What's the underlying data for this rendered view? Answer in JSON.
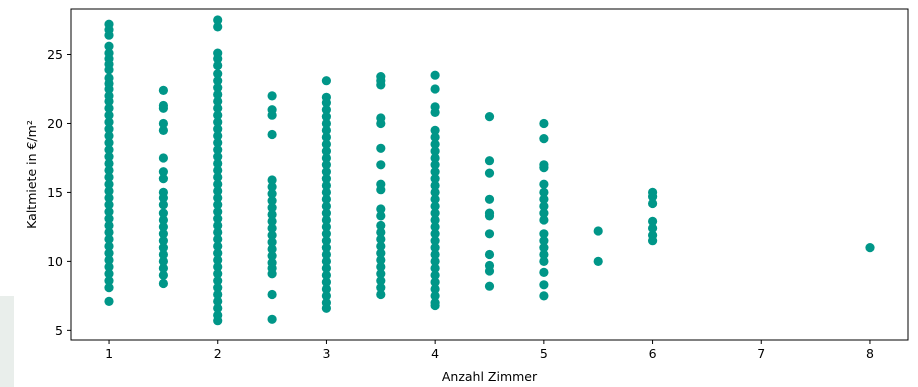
{
  "chart_data": {
    "type": "scatter",
    "title": "",
    "xlabel": "Anzahl Zimmer",
    "ylabel": "Kaltmiete in €/m²",
    "xlim": [
      0.65,
      8.35
    ],
    "ylim": [
      4.3,
      28.3
    ],
    "xticks": [
      1,
      2,
      3,
      4,
      5,
      6,
      7,
      8
    ],
    "yticks": [
      5,
      10,
      15,
      20,
      25
    ],
    "grid": false,
    "marker_color": "#009688",
    "series": [
      {
        "points": [
          {
            "x": 1,
            "y": 27.2
          },
          {
            "x": 1,
            "y": 26.8
          },
          {
            "x": 1,
            "y": 26.4
          },
          {
            "x": 1,
            "y": 25.6
          },
          {
            "x": 1,
            "y": 25.1
          },
          {
            "x": 1,
            "y": 24.7
          },
          {
            "x": 1,
            "y": 24.3
          },
          {
            "x": 1,
            "y": 23.9
          },
          {
            "x": 1,
            "y": 23.3
          },
          {
            "x": 1,
            "y": 22.9
          },
          {
            "x": 1,
            "y": 22.5
          },
          {
            "x": 1,
            "y": 22.0
          },
          {
            "x": 1,
            "y": 21.6
          },
          {
            "x": 1,
            "y": 21.1
          },
          {
            "x": 1,
            "y": 20.6
          },
          {
            "x": 1,
            "y": 20.1
          },
          {
            "x": 1,
            "y": 19.6
          },
          {
            "x": 1,
            "y": 19.1
          },
          {
            "x": 1,
            "y": 18.6
          },
          {
            "x": 1,
            "y": 18.1
          },
          {
            "x": 1,
            "y": 17.6
          },
          {
            "x": 1,
            "y": 17.1
          },
          {
            "x": 1,
            "y": 16.6
          },
          {
            "x": 1,
            "y": 16.1
          },
          {
            "x": 1,
            "y": 15.6
          },
          {
            "x": 1,
            "y": 15.1
          },
          {
            "x": 1,
            "y": 14.6
          },
          {
            "x": 1,
            "y": 14.1
          },
          {
            "x": 1,
            "y": 13.6
          },
          {
            "x": 1,
            "y": 13.1
          },
          {
            "x": 1,
            "y": 12.6
          },
          {
            "x": 1,
            "y": 12.1
          },
          {
            "x": 1,
            "y": 11.6
          },
          {
            "x": 1,
            "y": 11.1
          },
          {
            "x": 1,
            "y": 10.6
          },
          {
            "x": 1,
            "y": 10.1
          },
          {
            "x": 1,
            "y": 9.6
          },
          {
            "x": 1,
            "y": 9.1
          },
          {
            "x": 1,
            "y": 8.6
          },
          {
            "x": 1,
            "y": 8.1
          },
          {
            "x": 1,
            "y": 7.1
          },
          {
            "x": 1.5,
            "y": 22.4
          },
          {
            "x": 1.5,
            "y": 21.3
          },
          {
            "x": 1.5,
            "y": 21.1
          },
          {
            "x": 1.5,
            "y": 20.0
          },
          {
            "x": 1.5,
            "y": 19.5
          },
          {
            "x": 1.5,
            "y": 17.5
          },
          {
            "x": 1.5,
            "y": 16.5
          },
          {
            "x": 1.5,
            "y": 16.0
          },
          {
            "x": 1.5,
            "y": 15.0
          },
          {
            "x": 1.5,
            "y": 14.6
          },
          {
            "x": 1.5,
            "y": 14.1
          },
          {
            "x": 1.5,
            "y": 13.5
          },
          {
            "x": 1.5,
            "y": 13.0
          },
          {
            "x": 1.5,
            "y": 12.5
          },
          {
            "x": 1.5,
            "y": 12.0
          },
          {
            "x": 1.5,
            "y": 11.5
          },
          {
            "x": 1.5,
            "y": 11.0
          },
          {
            "x": 1.5,
            "y": 10.5
          },
          {
            "x": 1.5,
            "y": 10.0
          },
          {
            "x": 1.5,
            "y": 9.5
          },
          {
            "x": 1.5,
            "y": 9.0
          },
          {
            "x": 1.5,
            "y": 8.4
          },
          {
            "x": 2,
            "y": 27.5
          },
          {
            "x": 2,
            "y": 27.0
          },
          {
            "x": 2,
            "y": 25.1
          },
          {
            "x": 2,
            "y": 24.7
          },
          {
            "x": 2,
            "y": 24.2
          },
          {
            "x": 2,
            "y": 23.6
          },
          {
            "x": 2,
            "y": 23.1
          },
          {
            "x": 2,
            "y": 22.6
          },
          {
            "x": 2,
            "y": 22.1
          },
          {
            "x": 2,
            "y": 21.6
          },
          {
            "x": 2,
            "y": 21.1
          },
          {
            "x": 2,
            "y": 20.6
          },
          {
            "x": 2,
            "y": 20.1
          },
          {
            "x": 2,
            "y": 19.6
          },
          {
            "x": 2,
            "y": 19.1
          },
          {
            "x": 2,
            "y": 18.6
          },
          {
            "x": 2,
            "y": 18.1
          },
          {
            "x": 2,
            "y": 17.6
          },
          {
            "x": 2,
            "y": 17.1
          },
          {
            "x": 2,
            "y": 16.6
          },
          {
            "x": 2,
            "y": 16.1
          },
          {
            "x": 2,
            "y": 15.6
          },
          {
            "x": 2,
            "y": 15.1
          },
          {
            "x": 2,
            "y": 14.6
          },
          {
            "x": 2,
            "y": 14.1
          },
          {
            "x": 2,
            "y": 13.6
          },
          {
            "x": 2,
            "y": 13.1
          },
          {
            "x": 2,
            "y": 12.6
          },
          {
            "x": 2,
            "y": 12.1
          },
          {
            "x": 2,
            "y": 11.6
          },
          {
            "x": 2,
            "y": 11.1
          },
          {
            "x": 2,
            "y": 10.6
          },
          {
            "x": 2,
            "y": 10.1
          },
          {
            "x": 2,
            "y": 9.6
          },
          {
            "x": 2,
            "y": 9.1
          },
          {
            "x": 2,
            "y": 8.6
          },
          {
            "x": 2,
            "y": 8.1
          },
          {
            "x": 2,
            "y": 7.6
          },
          {
            "x": 2,
            "y": 7.1
          },
          {
            "x": 2,
            "y": 6.6
          },
          {
            "x": 2,
            "y": 6.1
          },
          {
            "x": 2,
            "y": 5.7
          },
          {
            "x": 2.5,
            "y": 22.0
          },
          {
            "x": 2.5,
            "y": 21.0
          },
          {
            "x": 2.5,
            "y": 20.6
          },
          {
            "x": 2.5,
            "y": 19.2
          },
          {
            "x": 2.5,
            "y": 15.9
          },
          {
            "x": 2.5,
            "y": 15.4
          },
          {
            "x": 2.5,
            "y": 14.9
          },
          {
            "x": 2.5,
            "y": 14.4
          },
          {
            "x": 2.5,
            "y": 13.9
          },
          {
            "x": 2.5,
            "y": 13.4
          },
          {
            "x": 2.5,
            "y": 12.9
          },
          {
            "x": 2.5,
            "y": 12.4
          },
          {
            "x": 2.5,
            "y": 11.9
          },
          {
            "x": 2.5,
            "y": 11.4
          },
          {
            "x": 2.5,
            "y": 10.9
          },
          {
            "x": 2.5,
            "y": 10.4
          },
          {
            "x": 2.5,
            "y": 9.9
          },
          {
            "x": 2.5,
            "y": 9.5
          },
          {
            "x": 2.5,
            "y": 9.1
          },
          {
            "x": 2.5,
            "y": 7.6
          },
          {
            "x": 2.5,
            "y": 5.8
          },
          {
            "x": 3,
            "y": 23.1
          },
          {
            "x": 3,
            "y": 21.9
          },
          {
            "x": 3,
            "y": 21.5
          },
          {
            "x": 3,
            "y": 21.0
          },
          {
            "x": 3,
            "y": 20.5
          },
          {
            "x": 3,
            "y": 20.0
          },
          {
            "x": 3,
            "y": 19.5
          },
          {
            "x": 3,
            "y": 19.0
          },
          {
            "x": 3,
            "y": 18.5
          },
          {
            "x": 3,
            "y": 18.0
          },
          {
            "x": 3,
            "y": 17.5
          },
          {
            "x": 3,
            "y": 17.0
          },
          {
            "x": 3,
            "y": 16.5
          },
          {
            "x": 3,
            "y": 16.0
          },
          {
            "x": 3,
            "y": 15.5
          },
          {
            "x": 3,
            "y": 15.0
          },
          {
            "x": 3,
            "y": 14.5
          },
          {
            "x": 3,
            "y": 14.0
          },
          {
            "x": 3,
            "y": 13.5
          },
          {
            "x": 3,
            "y": 13.0
          },
          {
            "x": 3,
            "y": 12.5
          },
          {
            "x": 3,
            "y": 12.0
          },
          {
            "x": 3,
            "y": 11.5
          },
          {
            "x": 3,
            "y": 11.0
          },
          {
            "x": 3,
            "y": 10.5
          },
          {
            "x": 3,
            "y": 10.0
          },
          {
            "x": 3,
            "y": 9.5
          },
          {
            "x": 3,
            "y": 9.0
          },
          {
            "x": 3,
            "y": 8.5
          },
          {
            "x": 3,
            "y": 8.0
          },
          {
            "x": 3,
            "y": 7.5
          },
          {
            "x": 3,
            "y": 7.0
          },
          {
            "x": 3,
            "y": 6.6
          },
          {
            "x": 3.5,
            "y": 23.4
          },
          {
            "x": 3.5,
            "y": 23.1
          },
          {
            "x": 3.5,
            "y": 22.8
          },
          {
            "x": 3.5,
            "y": 20.4
          },
          {
            "x": 3.5,
            "y": 20.0
          },
          {
            "x": 3.5,
            "y": 18.2
          },
          {
            "x": 3.5,
            "y": 17.0
          },
          {
            "x": 3.5,
            "y": 15.6
          },
          {
            "x": 3.5,
            "y": 15.2
          },
          {
            "x": 3.5,
            "y": 13.8
          },
          {
            "x": 3.5,
            "y": 13.3
          },
          {
            "x": 3.5,
            "y": 12.6
          },
          {
            "x": 3.5,
            "y": 12.1
          },
          {
            "x": 3.5,
            "y": 11.6
          },
          {
            "x": 3.5,
            "y": 11.1
          },
          {
            "x": 3.5,
            "y": 10.6
          },
          {
            "x": 3.5,
            "y": 10.1
          },
          {
            "x": 3.5,
            "y": 9.6
          },
          {
            "x": 3.5,
            "y": 9.1
          },
          {
            "x": 3.5,
            "y": 8.6
          },
          {
            "x": 3.5,
            "y": 8.1
          },
          {
            "x": 3.5,
            "y": 7.6
          },
          {
            "x": 4,
            "y": 23.5
          },
          {
            "x": 4,
            "y": 22.5
          },
          {
            "x": 4,
            "y": 21.2
          },
          {
            "x": 4,
            "y": 20.8
          },
          {
            "x": 4,
            "y": 19.5
          },
          {
            "x": 4,
            "y": 19.0
          },
          {
            "x": 4,
            "y": 18.5
          },
          {
            "x": 4,
            "y": 18.0
          },
          {
            "x": 4,
            "y": 17.5
          },
          {
            "x": 4,
            "y": 17.0
          },
          {
            "x": 4,
            "y": 16.5
          },
          {
            "x": 4,
            "y": 16.0
          },
          {
            "x": 4,
            "y": 15.5
          },
          {
            "x": 4,
            "y": 15.0
          },
          {
            "x": 4,
            "y": 14.5
          },
          {
            "x": 4,
            "y": 14.0
          },
          {
            "x": 4,
            "y": 13.5
          },
          {
            "x": 4,
            "y": 13.0
          },
          {
            "x": 4,
            "y": 12.5
          },
          {
            "x": 4,
            "y": 12.0
          },
          {
            "x": 4,
            "y": 11.5
          },
          {
            "x": 4,
            "y": 11.0
          },
          {
            "x": 4,
            "y": 10.5
          },
          {
            "x": 4,
            "y": 10.0
          },
          {
            "x": 4,
            "y": 9.5
          },
          {
            "x": 4,
            "y": 9.0
          },
          {
            "x": 4,
            "y": 8.5
          },
          {
            "x": 4,
            "y": 8.0
          },
          {
            "x": 4,
            "y": 7.5
          },
          {
            "x": 4,
            "y": 7.0
          },
          {
            "x": 4,
            "y": 6.8
          },
          {
            "x": 4.5,
            "y": 20.5
          },
          {
            "x": 4.5,
            "y": 17.3
          },
          {
            "x": 4.5,
            "y": 16.4
          },
          {
            "x": 4.5,
            "y": 14.5
          },
          {
            "x": 4.5,
            "y": 13.5
          },
          {
            "x": 4.5,
            "y": 13.3
          },
          {
            "x": 4.5,
            "y": 12.0
          },
          {
            "x": 4.5,
            "y": 10.5
          },
          {
            "x": 4.5,
            "y": 9.7
          },
          {
            "x": 4.5,
            "y": 9.3
          },
          {
            "x": 4.5,
            "y": 8.2
          },
          {
            "x": 5,
            "y": 20.0
          },
          {
            "x": 5,
            "y": 18.9
          },
          {
            "x": 5,
            "y": 17.0
          },
          {
            "x": 5,
            "y": 16.8
          },
          {
            "x": 5,
            "y": 15.6
          },
          {
            "x": 5,
            "y": 15.0
          },
          {
            "x": 5,
            "y": 14.5
          },
          {
            "x": 5,
            "y": 14.0
          },
          {
            "x": 5,
            "y": 13.5
          },
          {
            "x": 5,
            "y": 13.0
          },
          {
            "x": 5,
            "y": 12.0
          },
          {
            "x": 5,
            "y": 11.5
          },
          {
            "x": 5,
            "y": 11.0
          },
          {
            "x": 5,
            "y": 10.5
          },
          {
            "x": 5,
            "y": 10.0
          },
          {
            "x": 5,
            "y": 9.2
          },
          {
            "x": 5,
            "y": 8.3
          },
          {
            "x": 5,
            "y": 7.5
          },
          {
            "x": 5.5,
            "y": 12.2
          },
          {
            "x": 5.5,
            "y": 10.0
          },
          {
            "x": 6,
            "y": 15.0
          },
          {
            "x": 6,
            "y": 14.7
          },
          {
            "x": 6,
            "y": 14.2
          },
          {
            "x": 6,
            "y": 12.9
          },
          {
            "x": 6,
            "y": 12.4
          },
          {
            "x": 6,
            "y": 11.9
          },
          {
            "x": 6,
            "y": 11.5
          },
          {
            "x": 8,
            "y": 11.0
          }
        ]
      }
    ]
  }
}
